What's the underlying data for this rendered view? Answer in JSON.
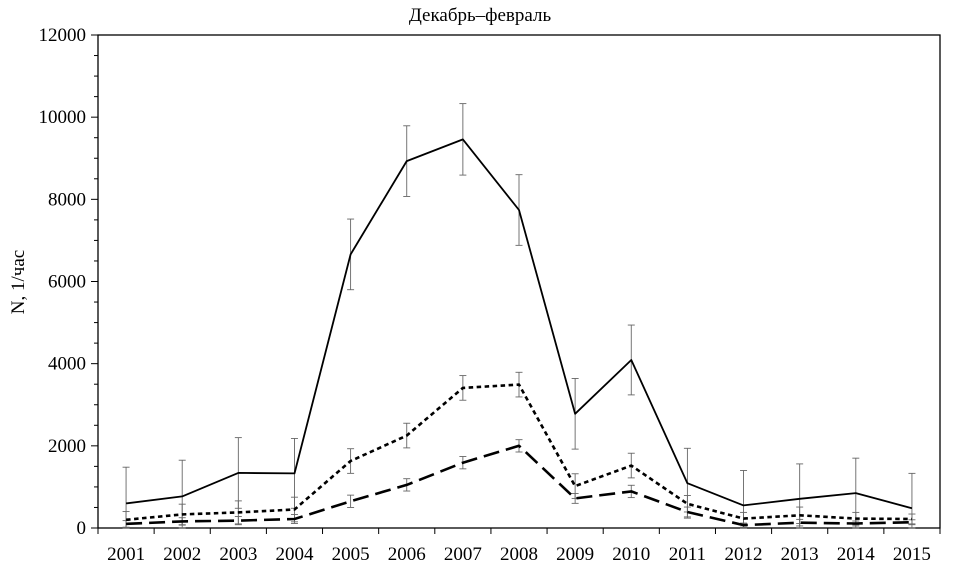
{
  "chart_data": {
    "type": "line",
    "title": "Декабрь–февраль",
    "xlabel": "",
    "ylabel": "N, 1/час",
    "ylim": [
      0,
      12000
    ],
    "yticks": [
      0,
      2000,
      4000,
      6000,
      8000,
      10000,
      12000
    ],
    "minor_ticks_per_major": 4,
    "grid": false,
    "legend": "none",
    "x": [
      "2001",
      "2002",
      "2003",
      "2004",
      "2005",
      "2006",
      "2007",
      "2008",
      "2009",
      "2010",
      "2011",
      "2012",
      "2013",
      "2014",
      "2015"
    ],
    "series": [
      {
        "style": "solid",
        "color": "#000000",
        "values": [
          600,
          770,
          1340,
          1330,
          6660,
          8930,
          9460,
          7740,
          2780,
          4090,
          1090,
          550,
          710,
          850,
          480
        ],
        "error": [
          880,
          880,
          860,
          850,
          860,
          860,
          870,
          860,
          860,
          850,
          850,
          850,
          850,
          850,
          850
        ]
      },
      {
        "style": "dotted",
        "color": "#000000",
        "values": [
          200,
          330,
          380,
          450,
          1630,
          2250,
          3410,
          3490,
          1020,
          1520,
          590,
          230,
          310,
          230,
          220
        ],
        "error": [
          200,
          250,
          280,
          300,
          300,
          300,
          300,
          300,
          300,
          300,
          200,
          150,
          200,
          150,
          120
        ]
      },
      {
        "style": "dashed",
        "color": "#000000",
        "values": [
          100,
          160,
          180,
          220,
          650,
          1050,
          1590,
          2000,
          720,
          890,
          390,
          70,
          130,
          110,
          140
        ],
        "error": [
          80,
          90,
          100,
          110,
          150,
          150,
          150,
          150,
          120,
          150,
          120,
          50,
          80,
          60,
          60
        ]
      }
    ]
  }
}
